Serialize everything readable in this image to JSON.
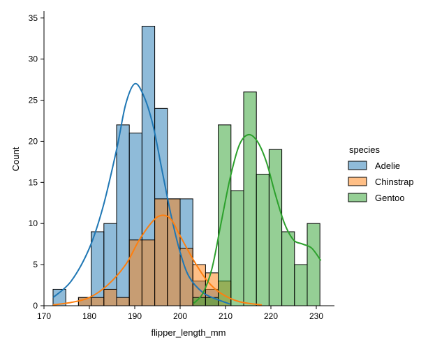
{
  "chart_data": {
    "type": "histogram",
    "title": "",
    "xlabel": "flipper_length_mm",
    "ylabel": "Count",
    "xlim": [
      170,
      234
    ],
    "ylim": [
      0,
      36
    ],
    "xticks": [
      170,
      180,
      190,
      200,
      210,
      220,
      230
    ],
    "yticks": [
      0,
      5,
      10,
      15,
      20,
      25,
      30,
      35
    ],
    "bin_width": 2.8,
    "legend_title": "species",
    "legend_position": "right",
    "series": [
      {
        "name": "Adelie",
        "color": "#1f77b4",
        "bins": [
          {
            "x": 172.0,
            "count": 2
          },
          {
            "x": 174.8,
            "count": 0
          },
          {
            "x": 177.6,
            "count": 1
          },
          {
            "x": 180.4,
            "count": 9
          },
          {
            "x": 183.2,
            "count": 10
          },
          {
            "x": 186.0,
            "count": 22
          },
          {
            "x": 188.8,
            "count": 21
          },
          {
            "x": 191.6,
            "count": 34
          },
          {
            "x": 194.4,
            "count": 24
          },
          {
            "x": 197.2,
            "count": 13
          },
          {
            "x": 200.0,
            "count": 13
          },
          {
            "x": 202.8,
            "count": 3
          },
          {
            "x": 205.6,
            "count": 2
          },
          {
            "x": 208.4,
            "count": 0
          },
          {
            "x": 211.2,
            "count": 0
          },
          {
            "x": 214.0,
            "count": 0
          },
          {
            "x": 216.8,
            "count": 0
          },
          {
            "x": 219.6,
            "count": 0
          },
          {
            "x": 222.4,
            "count": 0
          },
          {
            "x": 225.2,
            "count": 0
          },
          {
            "x": 228.0,
            "count": 0
          }
        ],
        "kde": [
          [
            172,
            1
          ],
          [
            176,
            3
          ],
          [
            180,
            7
          ],
          [
            183,
            12
          ],
          [
            186,
            19
          ],
          [
            188,
            24.5
          ],
          [
            190,
            27
          ],
          [
            192,
            25.5
          ],
          [
            194,
            22
          ],
          [
            196,
            16.5
          ],
          [
            198,
            11
          ],
          [
            200,
            6.5
          ],
          [
            202,
            3.5
          ],
          [
            205,
            1.6
          ],
          [
            208,
            0.8
          ],
          [
            211,
            0.2
          ]
        ]
      },
      {
        "name": "Chinstrap",
        "color": "#ff7f0e",
        "bins": [
          {
            "x": 172.0,
            "count": 0
          },
          {
            "x": 174.8,
            "count": 0
          },
          {
            "x": 177.6,
            "count": 1
          },
          {
            "x": 180.4,
            "count": 1
          },
          {
            "x": 183.2,
            "count": 2
          },
          {
            "x": 186.0,
            "count": 1
          },
          {
            "x": 188.8,
            "count": 8
          },
          {
            "x": 191.6,
            "count": 8
          },
          {
            "x": 194.4,
            "count": 13
          },
          {
            "x": 197.2,
            "count": 13
          },
          {
            "x": 200.0,
            "count": 7
          },
          {
            "x": 202.8,
            "count": 5
          },
          {
            "x": 205.6,
            "count": 4
          },
          {
            "x": 208.4,
            "count": 3
          },
          {
            "x": 211.2,
            "count": 0
          },
          {
            "x": 214.0,
            "count": 0
          },
          {
            "x": 216.8,
            "count": 0
          },
          {
            "x": 219.6,
            "count": 0
          },
          {
            "x": 222.4,
            "count": 0
          },
          {
            "x": 225.2,
            "count": 0
          },
          {
            "x": 228.0,
            "count": 0
          }
        ],
        "kde": [
          [
            172,
            0.1
          ],
          [
            176,
            0.4
          ],
          [
            180,
            1
          ],
          [
            184,
            2.5
          ],
          [
            188,
            5
          ],
          [
            191,
            8
          ],
          [
            194,
            10.3
          ],
          [
            196,
            11
          ],
          [
            198,
            10.5
          ],
          [
            200,
            8.5
          ],
          [
            203,
            5.5
          ],
          [
            206,
            3
          ],
          [
            209,
            1.5
          ],
          [
            213,
            0.5
          ],
          [
            218,
            0.1
          ]
        ]
      },
      {
        "name": "Gentoo",
        "color": "#2ca02c",
        "bins": [
          {
            "x": 172.0,
            "count": 0
          },
          {
            "x": 174.8,
            "count": 0
          },
          {
            "x": 177.6,
            "count": 0
          },
          {
            "x": 180.4,
            "count": 0
          },
          {
            "x": 183.2,
            "count": 0
          },
          {
            "x": 186.0,
            "count": 0
          },
          {
            "x": 188.8,
            "count": 0
          },
          {
            "x": 191.6,
            "count": 0
          },
          {
            "x": 194.4,
            "count": 0
          },
          {
            "x": 197.2,
            "count": 0
          },
          {
            "x": 200.0,
            "count": 0
          },
          {
            "x": 202.8,
            "count": 1
          },
          {
            "x": 205.6,
            "count": 1
          },
          {
            "x": 208.4,
            "count": 22
          },
          {
            "x": 211.2,
            "count": 14
          },
          {
            "x": 214.0,
            "count": 26
          },
          {
            "x": 216.8,
            "count": 16
          },
          {
            "x": 219.6,
            "count": 19
          },
          {
            "x": 222.4,
            "count": 9
          },
          {
            "x": 225.2,
            "count": 5
          },
          {
            "x": 228.0,
            "count": 10
          }
        ],
        "kde": [
          [
            203,
            0.3
          ],
          [
            205,
            1.5
          ],
          [
            207,
            4.5
          ],
          [
            209,
            10
          ],
          [
            211,
            15.5
          ],
          [
            213,
            19.5
          ],
          [
            215,
            20.8
          ],
          [
            217,
            20
          ],
          [
            219,
            17.5
          ],
          [
            221,
            13.5
          ],
          [
            223,
            10
          ],
          [
            225,
            8
          ],
          [
            227,
            7.5
          ],
          [
            229,
            7
          ],
          [
            231,
            5.5
          ]
        ]
      }
    ]
  }
}
